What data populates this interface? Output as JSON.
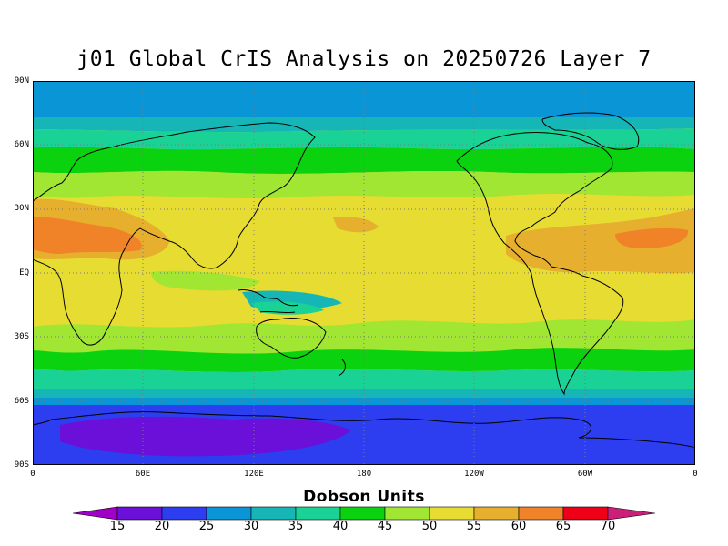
{
  "title": "j01 Global CrIS Analysis on 20250726 Layer 7",
  "map": {
    "projection": "equirectangular",
    "lon_range": [
      0,
      360
    ],
    "lat_range": [
      -90,
      90
    ],
    "lat_ticks": [
      "90N",
      "60N",
      "30N",
      "EQ",
      "30S",
      "60S",
      "90S"
    ],
    "lon_ticks": [
      "0",
      "60E",
      "120E",
      "180",
      "120W",
      "60W",
      "0"
    ],
    "grid": "dotted gray",
    "field": "ozone column",
    "coastlines": "black"
  },
  "colorbar": {
    "title": "Dobson Units",
    "levels": [
      "15",
      "20",
      "25",
      "30",
      "35",
      "40",
      "45",
      "50",
      "55",
      "60",
      "65",
      "70"
    ],
    "colors": [
      "#a000c8",
      "#6a10d8",
      "#2c3ef0",
      "#0a96d6",
      "#16b6b6",
      "#1ad296",
      "#0ad20e",
      "#a0e632",
      "#e6dc32",
      "#e6af2d",
      "#f08228",
      "#f00018",
      "#cc1f7a"
    ]
  }
}
